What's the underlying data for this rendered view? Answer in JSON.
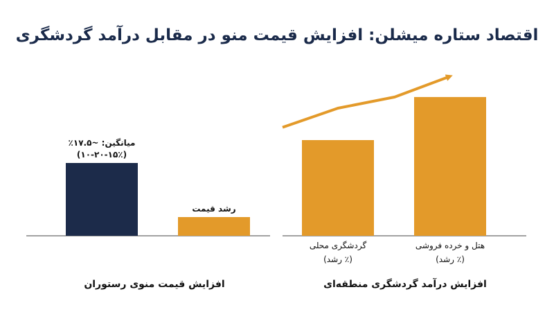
{
  "title": "اقتصاد ستاره میشلن: افزایش قیمت منو در مقابل درآمد گردشگری",
  "colors": {
    "navy": "#1c2b4a",
    "gold": "#e39a2a",
    "axis": "#444444",
    "title": "#1a2a4a"
  },
  "chart_data": [
    {
      "type": "bar",
      "title": "افزایش قیمت منوی رستوران",
      "categories": [
        "",
        "رشد قیمت"
      ],
      "series": [
        {
          "values": [
            17.5,
            4.5
          ]
        }
      ],
      "bar_colors": [
        "#1c2b4a",
        "#e39a2a"
      ],
      "annotations": [
        {
          "category_index": 0,
          "lines": [
            "میانگین: ~۱۷.۵٪",
            "(۱۰-۲۰-۱۵٪)"
          ]
        },
        {
          "category_index": 1,
          "lines": [
            "رشد قیمت"
          ]
        }
      ],
      "ylim": [
        0,
        30
      ],
      "grid": false,
      "legend": "none"
    },
    {
      "type": "bar",
      "title": "افزایش درآمد گردشگری منطقه‌ای",
      "categories": [
        "گردشگری محلی",
        "هتل و خرده فروشی"
      ],
      "category_sublabels": [
        "(٪ رشد)",
        "(٪ رشد)"
      ],
      "series": [
        {
          "values": [
            60,
            87
          ]
        }
      ],
      "bar_colors": [
        "#e39a2a",
        "#e39a2a"
      ],
      "trend_arrow": {
        "values": [
          68,
          80,
          87,
          100
        ]
      },
      "ylim": [
        0,
        100
      ],
      "grid": false,
      "legend": "none"
    }
  ]
}
